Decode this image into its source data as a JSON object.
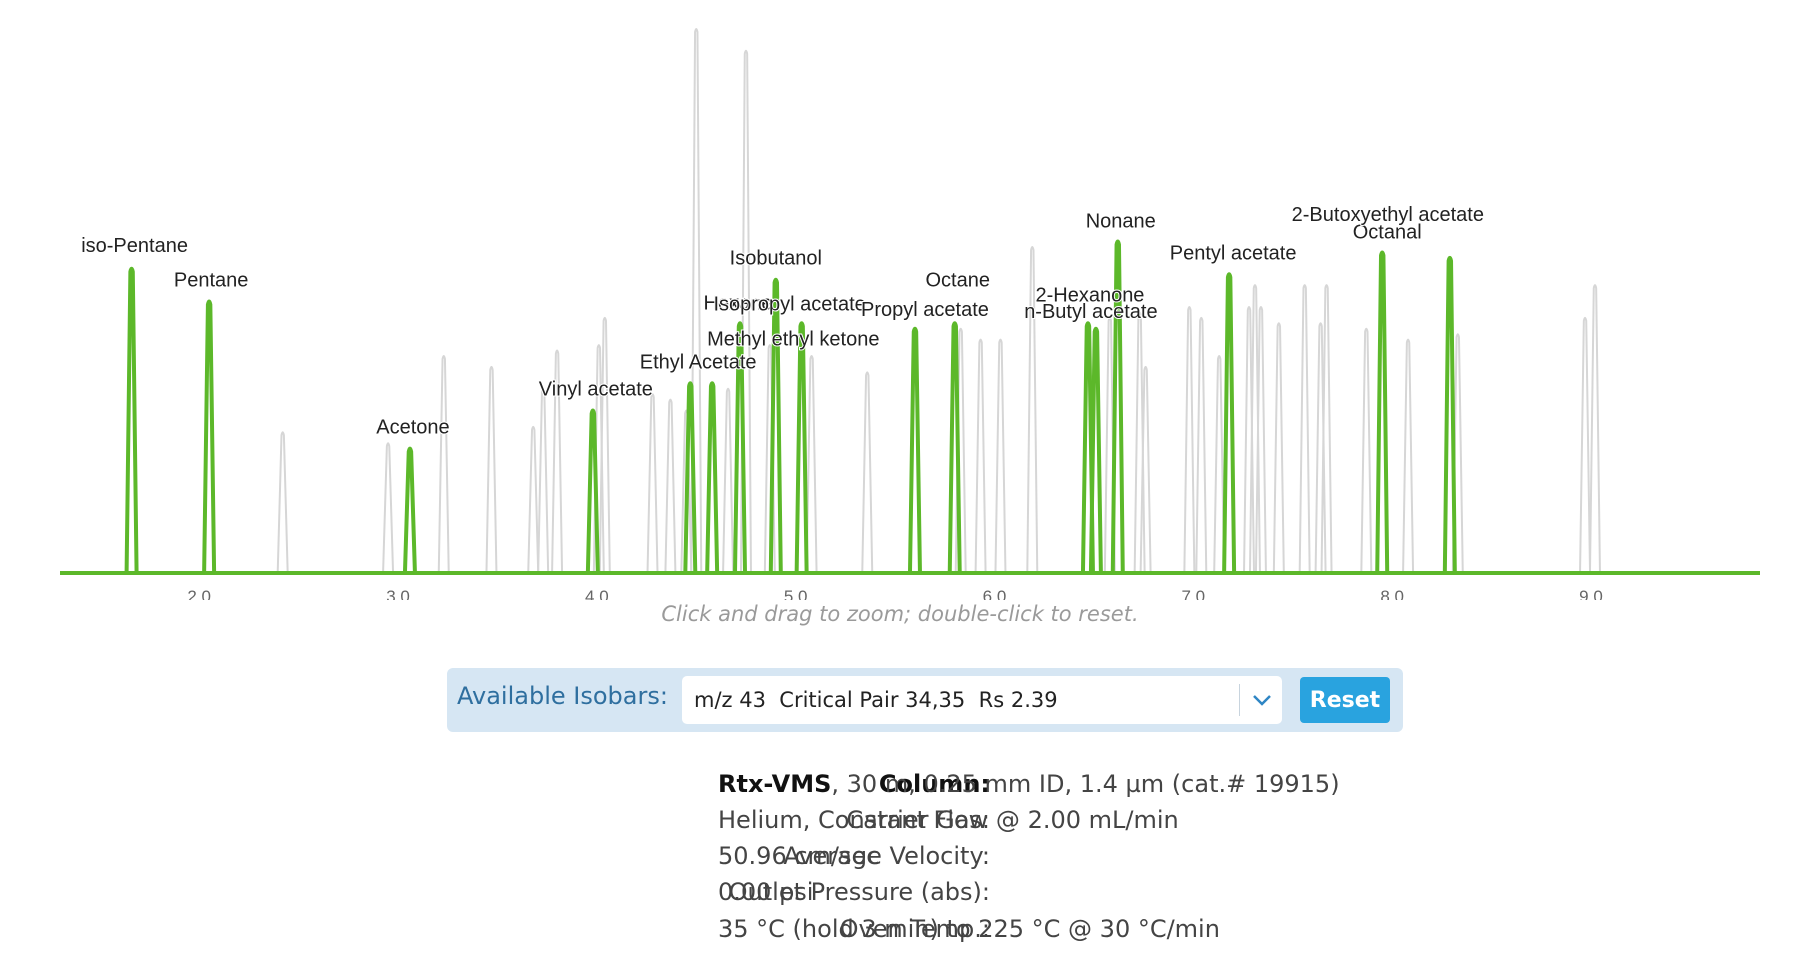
{
  "chart_data": {
    "type": "line",
    "description_hint": "",
    "x_ticks": [
      "2.0",
      "3.0",
      "4.0",
      "5.0",
      "6.0",
      "7.0",
      "8.0",
      "9.0"
    ],
    "xlim": [
      1.3,
      9.85
    ],
    "ylim": [
      0,
      100
    ],
    "hint": "Click and drag to zoom; double-click to reset.",
    "highlight_color": "#5cb82a",
    "background_peak_color": "#d6d6d6",
    "labeled_peaks": [
      {
        "name": "iso-Pentane",
        "rt": 1.66,
        "height": 56
      },
      {
        "name": "Pentane",
        "rt": 2.05,
        "height": 50
      },
      {
        "name": "Acetone",
        "rt": 3.06,
        "height": 23
      },
      {
        "name": "Vinyl acetate",
        "rt": 3.98,
        "height": 30
      },
      {
        "name": "Ethyl Acetate",
        "rt": 4.58,
        "height": 35
      },
      {
        "name": "Methyl ethyl ketone",
        "rt": 4.47,
        "height": 35
      },
      {
        "name": "Hexane",
        "rt": 4.72,
        "height": 46
      },
      {
        "name": "Isobutanol",
        "rt": 4.9,
        "height": 54
      },
      {
        "name": "Isopropyl acetate",
        "rt": 5.03,
        "height": 46
      },
      {
        "name": "Propyl acetate",
        "rt": 5.6,
        "height": 45
      },
      {
        "name": "Octane",
        "rt": 5.8,
        "height": 46
      },
      {
        "name": "2-Hexanone",
        "rt": 6.47,
        "height": 46
      },
      {
        "name": "n-Butyl acetate",
        "rt": 6.51,
        "height": 45
      },
      {
        "name": "Nonane",
        "rt": 6.62,
        "height": 61
      },
      {
        "name": "Pentyl acetate",
        "rt": 7.18,
        "height": 55
      },
      {
        "name": "Octanal",
        "rt": 7.95,
        "height": 59
      },
      {
        "name": "2-Butoxyethyl acetate",
        "rt": 8.29,
        "height": 58
      }
    ],
    "background_peaks": [
      {
        "rt": 2.42,
        "height": 26
      },
      {
        "rt": 2.95,
        "height": 24
      },
      {
        "rt": 3.23,
        "height": 40
      },
      {
        "rt": 3.47,
        "height": 38
      },
      {
        "rt": 3.68,
        "height": 27
      },
      {
        "rt": 3.73,
        "height": 34
      },
      {
        "rt": 3.8,
        "height": 41
      },
      {
        "rt": 4.01,
        "height": 42
      },
      {
        "rt": 4.04,
        "height": 47
      },
      {
        "rt": 4.28,
        "height": 33
      },
      {
        "rt": 4.37,
        "height": 32
      },
      {
        "rt": 4.45,
        "height": 30
      },
      {
        "rt": 4.5,
        "height": 100
      },
      {
        "rt": 4.66,
        "height": 34
      },
      {
        "rt": 4.75,
        "height": 96
      },
      {
        "rt": 4.87,
        "height": 42
      },
      {
        "rt": 5.08,
        "height": 40
      },
      {
        "rt": 5.36,
        "height": 37
      },
      {
        "rt": 5.83,
        "height": 45
      },
      {
        "rt": 5.93,
        "height": 43
      },
      {
        "rt": 6.03,
        "height": 43
      },
      {
        "rt": 6.19,
        "height": 60
      },
      {
        "rt": 6.58,
        "height": 47
      },
      {
        "rt": 6.73,
        "height": 48
      },
      {
        "rt": 6.76,
        "height": 38
      },
      {
        "rt": 6.98,
        "height": 49
      },
      {
        "rt": 7.04,
        "height": 47
      },
      {
        "rt": 7.13,
        "height": 40
      },
      {
        "rt": 7.28,
        "height": 49
      },
      {
        "rt": 7.31,
        "height": 53
      },
      {
        "rt": 7.34,
        "height": 49
      },
      {
        "rt": 7.43,
        "height": 46
      },
      {
        "rt": 7.56,
        "height": 53
      },
      {
        "rt": 7.64,
        "height": 46
      },
      {
        "rt": 7.67,
        "height": 53
      },
      {
        "rt": 7.87,
        "height": 45
      },
      {
        "rt": 8.08,
        "height": 43
      },
      {
        "rt": 8.33,
        "height": 44
      },
      {
        "rt": 8.97,
        "height": 47
      },
      {
        "rt": 9.02,
        "height": 53
      }
    ]
  },
  "isobars": {
    "label": "Available Isobars:",
    "selected": "m/z 43  Critical Pair 34,35  Rs 2.39",
    "reset_label": "Reset"
  },
  "details": {
    "column_key": "Column:",
    "column_name": "Rtx-VMS",
    "column_rest": ", 30 m, 0.25 mm ID, 1.4 µm (cat.# 19915)",
    "carrier_key": "Carrier Gas:",
    "carrier_value": "Helium, Constant Flow @ 2.00 mL/min",
    "velocity_key": "Average Velocity:",
    "velocity_value": "50.96 cm/sec",
    "pressure_key": "Outlet Pressure (abs):",
    "pressure_value": "0.00 psi",
    "oven_key": "Oven Temp.:",
    "oven_value": "35 °C (hold 3 min) to 225 °C @ 30 °C/min"
  }
}
